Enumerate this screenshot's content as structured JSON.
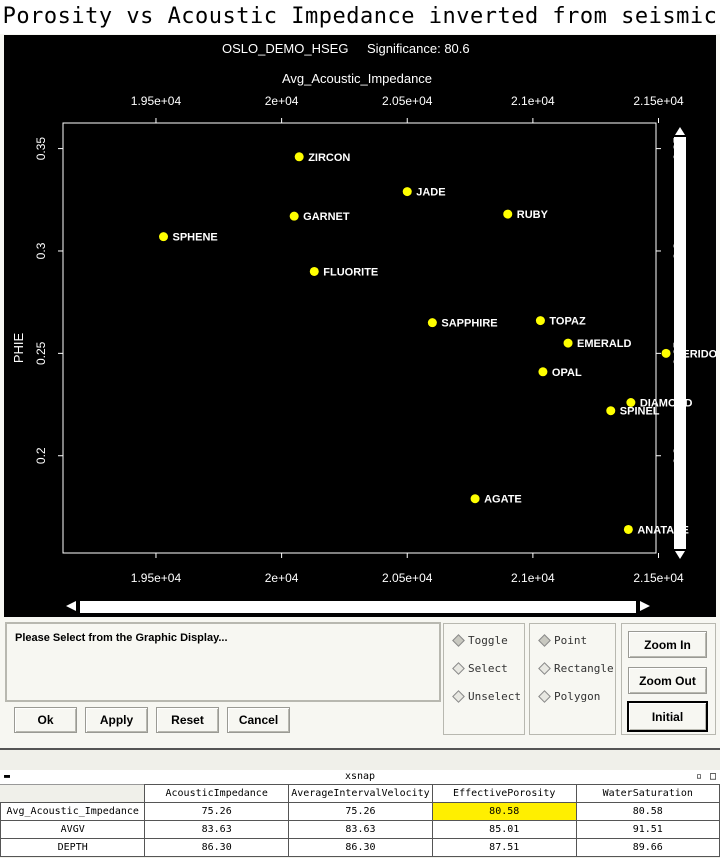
{
  "window_title": "Porosity vs Acoustic Impedance inverted from seismic",
  "chart_data": {
    "type": "scatter",
    "title": "OSLO_DEMO_HSEG",
    "significance_label": "Significance: 80.6",
    "xlabel": "Avg_Acoustic_Impedance",
    "ylabel": "PHIE",
    "xlim": [
      19130,
      21490
    ],
    "ylim": [
      0.1525,
      0.3625
    ],
    "x_ticks": [
      19500,
      20000,
      20500,
      21000,
      21500
    ],
    "x_tick_labels": [
      "1.95e+04",
      "2e+04",
      "2.05e+04",
      "2.1e+04",
      "2.15e+04"
    ],
    "y_ticks": [
      0.2,
      0.25,
      0.3,
      0.35
    ],
    "y_tick_labels": [
      "0.2",
      "0.25",
      "0.3",
      "0.35"
    ],
    "point_color": "#ffff00",
    "points": [
      {
        "label": "ZIRCON",
        "x": 20070,
        "y": 0.346
      },
      {
        "label": "JADE",
        "x": 20500,
        "y": 0.329
      },
      {
        "label": "GARNET",
        "x": 20050,
        "y": 0.317
      },
      {
        "label": "RUBY",
        "x": 20900,
        "y": 0.318
      },
      {
        "label": "SPHENE",
        "x": 19530,
        "y": 0.307
      },
      {
        "label": "FLUORITE",
        "x": 20130,
        "y": 0.29
      },
      {
        "label": "SAPPHIRE",
        "x": 20600,
        "y": 0.265
      },
      {
        "label": "TOPAZ",
        "x": 21030,
        "y": 0.266
      },
      {
        "label": "EMERALD",
        "x": 21140,
        "y": 0.255
      },
      {
        "label": "PERIDOT",
        "x": 21530,
        "y": 0.25
      },
      {
        "label": "OPAL",
        "x": 21040,
        "y": 0.241
      },
      {
        "label": "DIAMOND",
        "x": 21390,
        "y": 0.226
      },
      {
        "label": "SPINEL",
        "x": 21310,
        "y": 0.222
      },
      {
        "label": "AGATE",
        "x": 20770,
        "y": 0.179
      },
      {
        "label": "ANATASE",
        "x": 21380,
        "y": 0.164
      }
    ]
  },
  "message": "Please Select from the Graphic Display...",
  "buttons": {
    "ok": "Ok",
    "apply": "Apply",
    "reset": "Reset",
    "cancel": "Cancel"
  },
  "selection_modes": [
    "Toggle",
    "Select",
    "Unselect"
  ],
  "selection_shapes": [
    "Point",
    "Rectangle",
    "Polygon"
  ],
  "zoom": {
    "in": "Zoom In",
    "out": "Zoom Out",
    "initial": "Initial"
  },
  "xsnap": {
    "title": "xsnap",
    "columns": [
      "AcousticImpedance",
      "AverageIntervalVelocity",
      "EffectivePorosity",
      "WaterSaturation"
    ],
    "rows": [
      {
        "name": "Avg_Acoustic_Impedance",
        "values": [
          "75.26",
          "75.26",
          "80.58",
          "80.58"
        ]
      },
      {
        "name": "AVGV",
        "values": [
          "83.63",
          "83.63",
          "85.01",
          "91.51"
        ]
      },
      {
        "name": "DEPTH",
        "values": [
          "86.30",
          "86.30",
          "87.51",
          "89.66"
        ]
      }
    ],
    "highlight_color": "#ffef00"
  }
}
